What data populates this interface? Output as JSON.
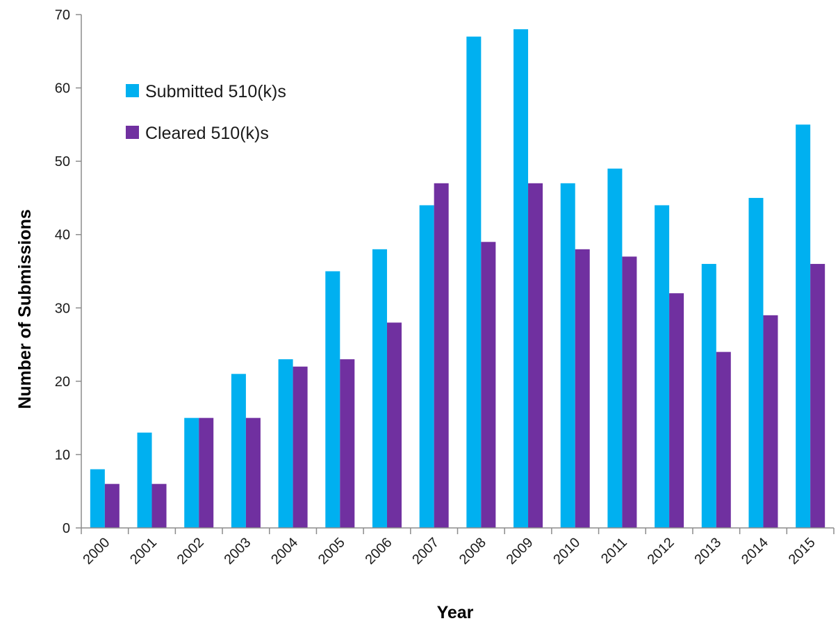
{
  "chart_data": {
    "type": "bar",
    "title": "",
    "xlabel": "Year",
    "ylabel": "Number of Submissions",
    "ylim": [
      0,
      70
    ],
    "yticks": [
      0,
      10,
      20,
      30,
      40,
      50,
      60,
      70
    ],
    "grid": false,
    "legend_position": "top-left",
    "categories": [
      "2000",
      "2001",
      "2002",
      "2003",
      "2004",
      "2005",
      "2006",
      "2007",
      "2008",
      "2009",
      "2010",
      "2011",
      "2012",
      "2013",
      "2014",
      "2015"
    ],
    "series": [
      {
        "name": "Submitted 510(k)s",
        "color": "#00B0F0",
        "values": [
          8,
          13,
          15,
          21,
          23,
          35,
          38,
          44,
          67,
          68,
          47,
          49,
          44,
          36,
          45,
          55
        ]
      },
      {
        "name": "Cleared 510(k)s",
        "color": "#7030A0",
        "values": [
          6,
          6,
          15,
          15,
          22,
          23,
          28,
          47,
          39,
          47,
          38,
          37,
          32,
          24,
          29,
          36
        ]
      }
    ]
  }
}
